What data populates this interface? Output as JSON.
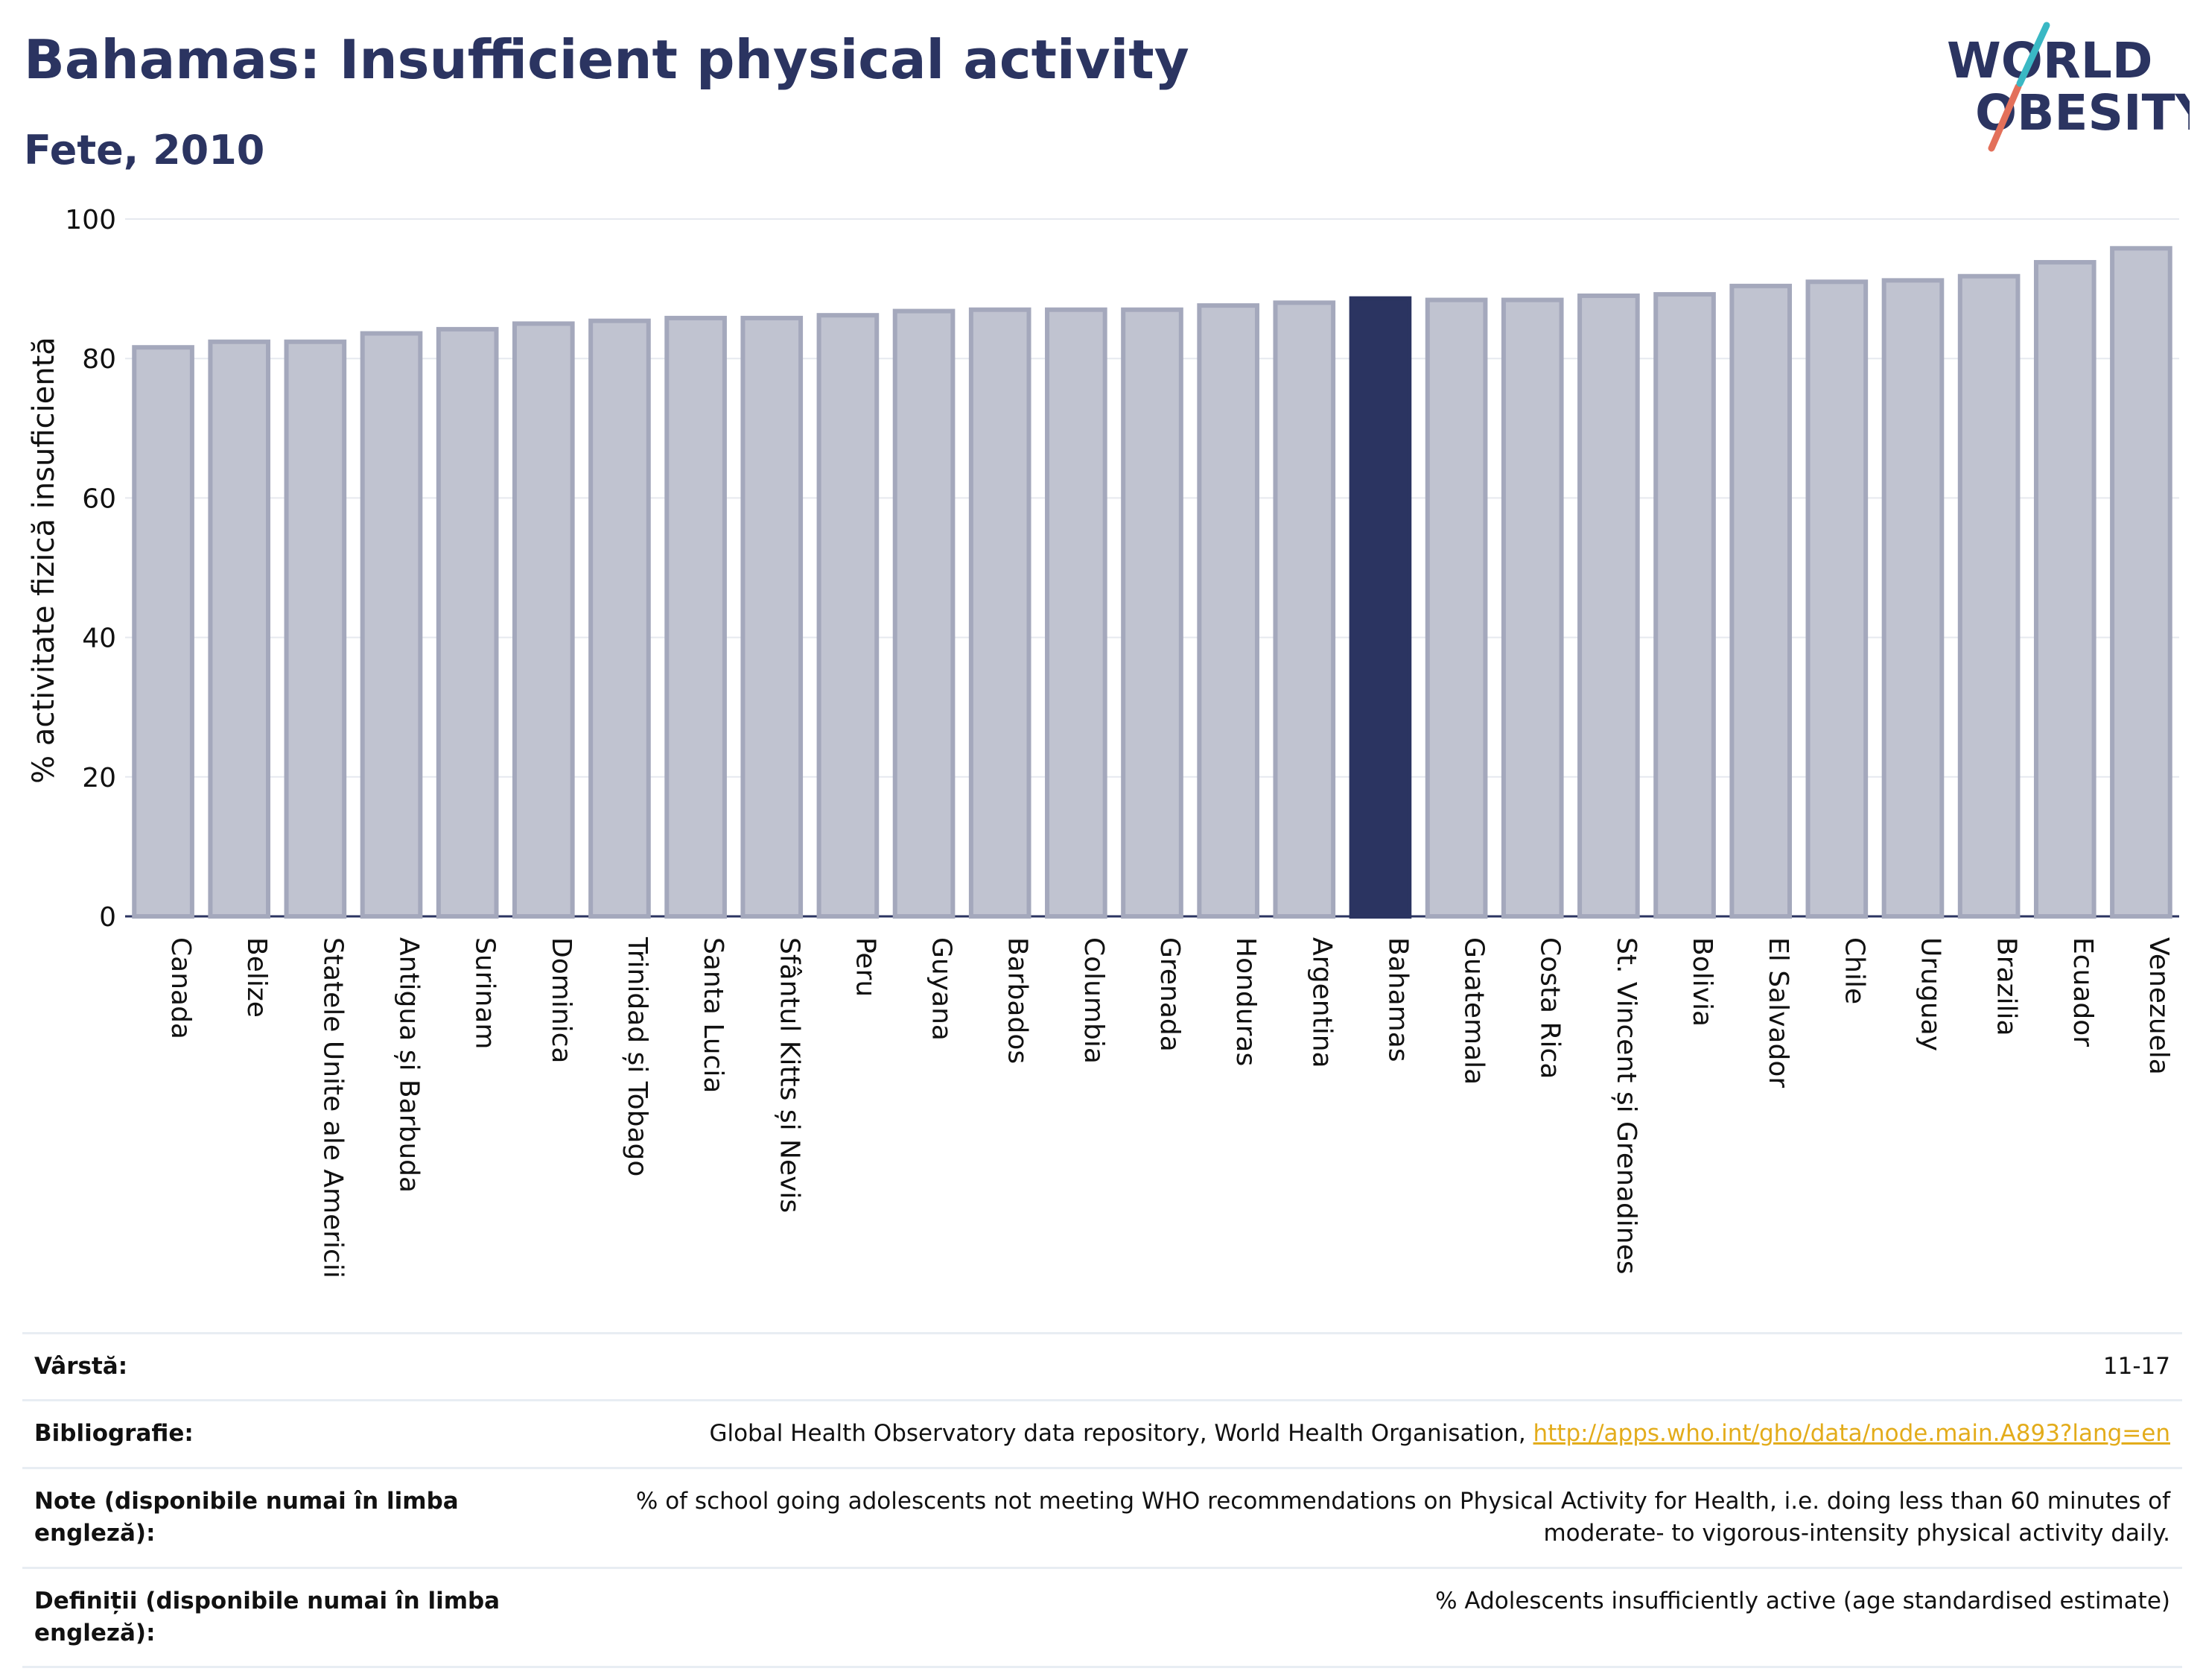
{
  "header": {
    "title": "Bahamas: Insufficient physical activity",
    "subtitle": "Fete, 2010"
  },
  "logo": {
    "line1": "WORLD",
    "line2": "OBESITY"
  },
  "chart_data": {
    "type": "bar",
    "ylabel": "% activitate fizică insuficientă",
    "xlabel": "",
    "ylim": [
      0,
      100
    ],
    "yticks": [
      0,
      20,
      40,
      60,
      80,
      100
    ],
    "grid": true,
    "highlight": "Bahamas",
    "colors": {
      "bar": "#c0c3d0",
      "bar_border": "#a4a8bc",
      "highlight": "#2b3461",
      "grid": "#e6e9ef",
      "baseline": "#2b3461"
    },
    "categories": [
      "Canada",
      "Belize",
      "Statele Unite ale Americii",
      "Antigua și Barbuda",
      "Surinam",
      "Dominica",
      "Trinidad și Tobago",
      "Santa Lucia",
      "Sfântul Kitts și Nevis",
      "Peru",
      "Guyana",
      "Barbados",
      "Columbia",
      "Grenada",
      "Honduras",
      "Argentina",
      "Bahamas",
      "Guatemala",
      "Costa Rica",
      "St. Vincent și Grenadines",
      "Bolivia",
      "El Salvador",
      "Chile",
      "Uruguay",
      "Brazilia",
      "Ecuador",
      "Venezuela"
    ],
    "values": [
      81.6,
      82.4,
      82.4,
      83.6,
      84.2,
      85.0,
      85.4,
      85.8,
      85.8,
      86.2,
      86.8,
      87.0,
      87.0,
      87.0,
      87.6,
      88.0,
      88.6,
      88.4,
      88.4,
      89.0,
      89.2,
      90.4,
      91.0,
      91.2,
      91.8,
      93.8,
      95.8
    ]
  },
  "meta": [
    {
      "label": "Vârstă:",
      "value": "11-17"
    },
    {
      "label": "Bibliografie:",
      "value": "Global Health Observatory data repository, World Health Organisation, ",
      "link": "http://apps.who.int/gho/data/node.main.A893?lang=en"
    },
    {
      "label": "Note (disponibile numai în limba engleză):",
      "value": "% of school going adolescents not meeting WHO recommendations on Physical Activity for Health, i.e. doing less than 60 minutes of moderate- to vigorous-intensity physical activity daily."
    },
    {
      "label": "Definiții (disponibile numai în limba engleză):",
      "value": "% Adolescents insufficiently active (age standardised estimate)"
    }
  ]
}
